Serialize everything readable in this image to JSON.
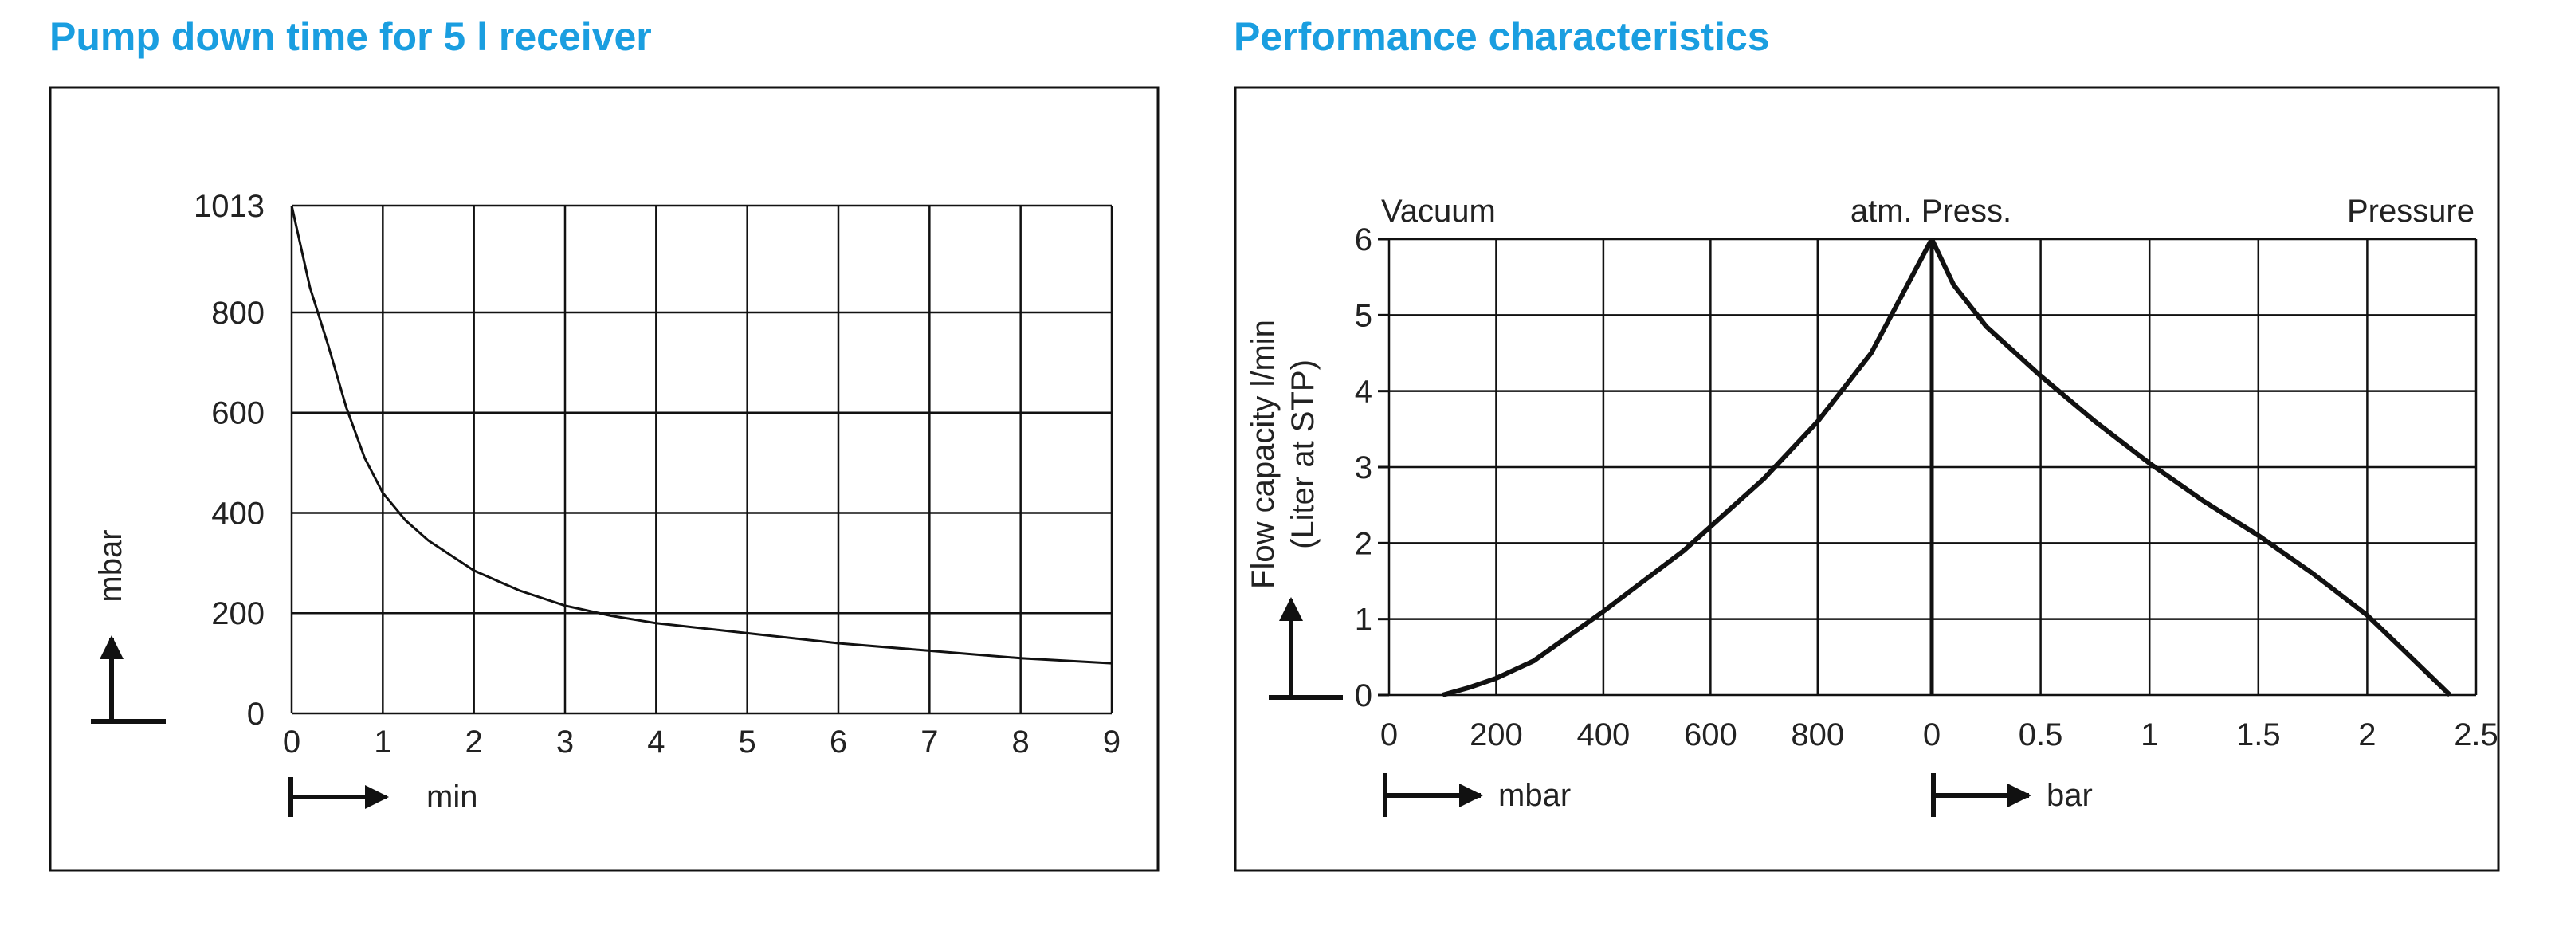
{
  "chart_data": [
    {
      "type": "line",
      "title": "Pump down time for 5 l receiver",
      "xlabel": "min",
      "ylabel": "mbar",
      "xlim": [
        0,
        9
      ],
      "ylim": [
        0,
        1013
      ],
      "x_ticks": [
        "0",
        "1",
        "2",
        "3",
        "4",
        "5",
        "6",
        "7",
        "8",
        "9"
      ],
      "y_ticks": [
        "0",
        "200",
        "400",
        "600",
        "800",
        "1013"
      ],
      "grid": true,
      "series": [
        {
          "x": [
            0,
            0.2,
            0.4,
            0.6,
            0.8,
            1.0,
            1.25,
            1.5,
            2.0,
            2.5,
            3.0,
            3.5,
            4.0,
            5.0,
            6.0,
            7.0,
            8.0,
            9.0
          ],
          "y": [
            1013,
            850,
            735,
            610,
            510,
            440,
            385,
            345,
            285,
            245,
            215,
            195,
            180,
            160,
            140,
            125,
            110,
            100
          ]
        }
      ]
    },
    {
      "type": "line",
      "title": "Performance characteristics",
      "ylabel": "Flow capacity l/min",
      "ylabel2": "(Liter at STP)",
      "ylim": [
        0,
        6
      ],
      "y_ticks": [
        "0",
        "1",
        "2",
        "3",
        "4",
        "5",
        "6"
      ],
      "region_labels": [
        "Vacuum",
        "atm. Press.",
        "Pressure"
      ],
      "grid": true,
      "vacuum_axis": {
        "unit": "mbar",
        "xlim": [
          0,
          1013
        ],
        "x_ticks": [
          "0",
          "200",
          "400",
          "600",
          "800"
        ],
        "x": [
          100,
          150,
          200,
          270,
          400,
          550,
          700,
          800,
          900,
          1013
        ],
        "y": [
          0,
          0.1,
          0.22,
          0.45,
          1.1,
          1.9,
          2.85,
          3.6,
          4.5,
          6.0
        ]
      },
      "pressure_axis": {
        "unit": "bar",
        "xlim": [
          0,
          2.5
        ],
        "x_ticks": [
          "0",
          "0.5",
          "1",
          "1.5",
          "2",
          "2.5"
        ],
        "x": [
          0,
          0.1,
          0.25,
          0.5,
          0.75,
          1.0,
          1.25,
          1.5,
          1.75,
          2.0,
          2.2,
          2.38
        ],
        "y": [
          6.0,
          5.4,
          4.85,
          4.2,
          3.6,
          3.05,
          2.55,
          2.1,
          1.6,
          1.05,
          0.5,
          0
        ]
      }
    }
  ]
}
